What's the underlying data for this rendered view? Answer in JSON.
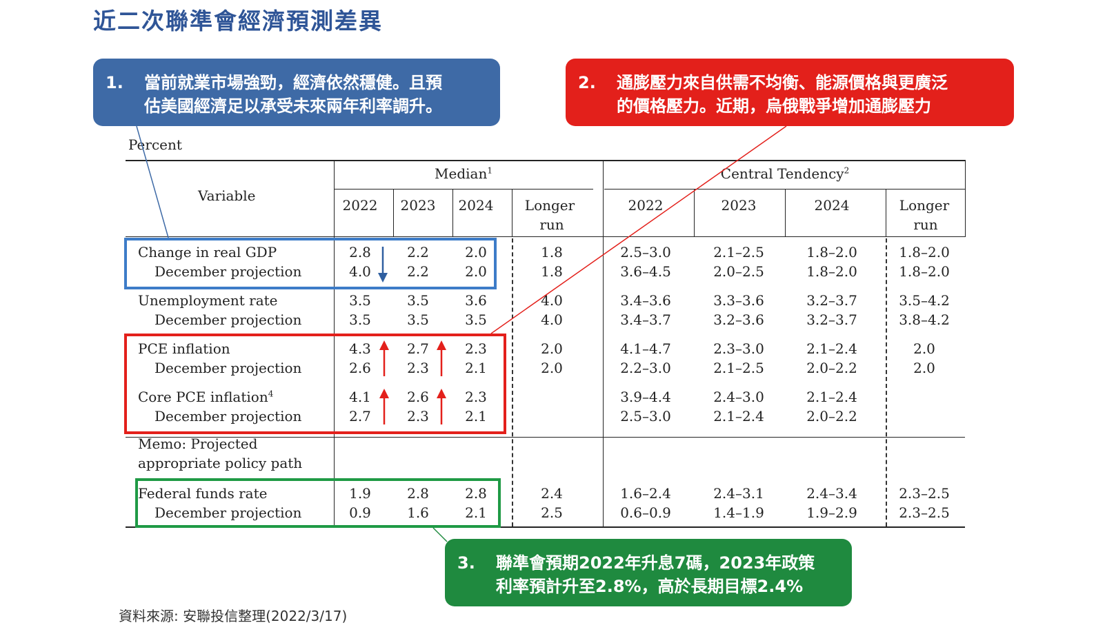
{
  "title": "近二次聯準會經濟預測差異",
  "callouts": {
    "c1": {
      "num": "1.",
      "line1": "當前就業市場強勁，經濟依然穩健。且預",
      "line2": "估美國經濟足以承受未來兩年利率調升。"
    },
    "c2": {
      "num": "2.",
      "line1": "通膨壓力來自供需不均衡、能源價格與更廣泛",
      "line2": "的價格壓力。近期，烏俄戰爭增加通膨壓力"
    },
    "c3": {
      "num": "3.",
      "line1": "聯準會預期2022年升息7碼，2023年政策",
      "line2": "利率預計升至2.8%，高於長期目標2.4%"
    }
  },
  "table": {
    "percent": "Percent",
    "variable": "Variable",
    "median": "Median",
    "median_sup": "1",
    "central": "Central Tendency",
    "central_sup": "2",
    "years": [
      "2022",
      "2023",
      "2024"
    ],
    "longer": "Longer",
    "run": "run",
    "rows": {
      "gdp": {
        "label": "Change in real GDP",
        "sub": "December projection",
        "m": [
          "2.8",
          "2.2",
          "2.0",
          "1.8"
        ],
        "md": [
          "4.0",
          "2.2",
          "2.0",
          "1.8"
        ],
        "ct": [
          "2.5–3.0",
          "2.1–2.5",
          "1.8–2.0",
          "1.8–2.0"
        ],
        "ctd": [
          "3.6–4.5",
          "2.0–2.5",
          "1.8–2.0",
          "1.8–2.0"
        ]
      },
      "unemp": {
        "label": "Unemployment rate",
        "sub": "December projection",
        "m": [
          "3.5",
          "3.5",
          "3.6",
          "4.0"
        ],
        "md": [
          "3.5",
          "3.5",
          "3.5",
          "4.0"
        ],
        "ct": [
          "3.4–3.6",
          "3.3–3.6",
          "3.2–3.7",
          "3.5–4.2"
        ],
        "ctd": [
          "3.4–3.7",
          "3.2–3.6",
          "3.2–3.7",
          "3.8–4.2"
        ]
      },
      "pce": {
        "label": "PCE inflation",
        "sub": "December projection",
        "m": [
          "4.3",
          "2.7",
          "2.3",
          "2.0"
        ],
        "md": [
          "2.6",
          "2.3",
          "2.1",
          "2.0"
        ],
        "ct": [
          "4.1–4.7",
          "2.3–3.0",
          "2.1–2.4",
          "2.0"
        ],
        "ctd": [
          "2.2–3.0",
          "2.1–2.5",
          "2.0–2.2",
          "2.0"
        ]
      },
      "core": {
        "label": "Core PCE inflation",
        "label_sup": "4",
        "sub": "December projection",
        "m": [
          "4.1",
          "2.6",
          "2.3"
        ],
        "md": [
          "2.7",
          "2.3",
          "2.1"
        ],
        "ct": [
          "3.9–4.4",
          "2.4–3.0",
          "2.1–2.4"
        ],
        "ctd": [
          "2.5–3.0",
          "2.1–2.4",
          "2.0–2.2"
        ]
      },
      "memo": {
        "line1": "Memo: Projected",
        "line2": "appropriate policy path"
      },
      "ffr": {
        "label": "Federal funds rate",
        "sub": "December projection",
        "m": [
          "1.9",
          "2.8",
          "2.8",
          "2.4"
        ],
        "md": [
          "0.9",
          "1.6",
          "2.1",
          "2.5"
        ],
        "ct": [
          "1.6–2.4",
          "2.4–3.1",
          "2.4–3.4",
          "2.3–2.5"
        ],
        "ctd": [
          "0.6–0.9",
          "1.4–1.9",
          "1.9–2.9",
          "2.3–2.5"
        ]
      }
    }
  },
  "source": "資料來源: 安聯投信整理(2022/3/17)",
  "colors": {
    "blue": "#3e6aa6",
    "red": "#e3201b",
    "green": "#1f8a3f",
    "title": "#2f5597"
  }
}
